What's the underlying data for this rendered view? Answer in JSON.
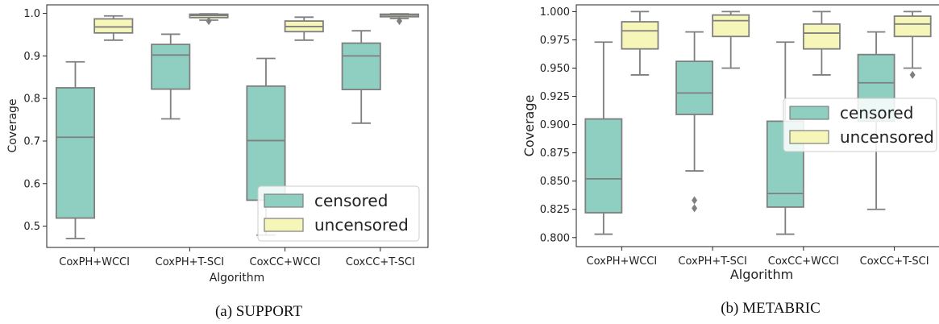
{
  "chart_data": [
    {
      "type": "box",
      "caption": "(a) SUPPORT",
      "xlabel": "Algorithm",
      "ylabel": "Coverage",
      "ylim": [
        0.45,
        1.02
      ],
      "yticks": [
        "0.5",
        "0.6",
        "0.7",
        "0.8",
        "0.9",
        "1.0"
      ],
      "ytick_values": [
        0.5,
        0.6,
        0.7,
        0.8,
        0.9,
        1.0
      ],
      "categories": [
        "CoxPH+WCCI",
        "CoxPH+T-SCI",
        "CoxCC+WCCI",
        "CoxCC+T-SCI"
      ],
      "legend": {
        "position": "lower-right",
        "entries": [
          "censored",
          "uncensored"
        ]
      },
      "series": [
        {
          "name": "censored",
          "color": "#8ecfc1",
          "boxes": [
            {
              "whislo": 0.471,
              "q1": 0.519,
              "med": 0.709,
              "q3": 0.825,
              "whishi": 0.886,
              "fliers": []
            },
            {
              "whislo": 0.752,
              "q1": 0.822,
              "med": 0.902,
              "q3": 0.927,
              "whishi": 0.951,
              "fliers": []
            },
            {
              "whislo": 0.479,
              "q1": 0.561,
              "med": 0.701,
              "q3": 0.829,
              "whishi": 0.894,
              "fliers": []
            },
            {
              "whislo": 0.742,
              "q1": 0.821,
              "med": 0.9,
              "q3": 0.93,
              "whishi": 0.959,
              "fliers": []
            }
          ]
        },
        {
          "name": "uncensored",
          "color": "#f7f6b9",
          "boxes": [
            {
              "whislo": 0.937,
              "q1": 0.954,
              "med": 0.968,
              "q3": 0.987,
              "whishi": 0.994,
              "fliers": []
            },
            {
              "whislo": 0.984,
              "q1": 0.99,
              "med": 0.995,
              "q3": 0.998,
              "whishi": 0.999,
              "fliers": [
                0.982
              ]
            },
            {
              "whislo": 0.937,
              "q1": 0.957,
              "med": 0.969,
              "q3": 0.982,
              "whishi": 0.991,
              "fliers": []
            },
            {
              "whislo": 0.988,
              "q1": 0.992,
              "med": 0.996,
              "q3": 0.998,
              "whishi": 0.999,
              "fliers": [
                0.982
              ]
            }
          ]
        }
      ]
    },
    {
      "type": "box",
      "caption": "(b) METABRIC",
      "xlabel": "Algorithm",
      "ylabel": "Coverage",
      "ylim": [
        0.792,
        1.006
      ],
      "yticks": [
        "0.800",
        "0.825",
        "0.850",
        "0.875",
        "0.900",
        "0.925",
        "0.950",
        "0.975",
        "1.000"
      ],
      "ytick_values": [
        0.8,
        0.825,
        0.85,
        0.875,
        0.9,
        0.925,
        0.95,
        0.975,
        1.0
      ],
      "categories": [
        "CoxPH+WCCI",
        "CoxPH+T-SCI",
        "CoxCC+WCCI",
        "CoxCC+T-SCI"
      ],
      "legend": {
        "position": "center-right",
        "entries": [
          "censored",
          "uncensored"
        ]
      },
      "series": [
        {
          "name": "censored",
          "color": "#8ecfc1",
          "boxes": [
            {
              "whislo": 0.803,
              "q1": 0.822,
              "med": 0.852,
              "q3": 0.905,
              "whishi": 0.973,
              "fliers": []
            },
            {
              "whislo": 0.859,
              "q1": 0.909,
              "med": 0.928,
              "q3": 0.956,
              "whishi": 0.982,
              "fliers": [
                0.833,
                0.826
              ]
            },
            {
              "whislo": 0.803,
              "q1": 0.827,
              "med": 0.839,
              "q3": 0.903,
              "whishi": 0.973,
              "fliers": []
            },
            {
              "whislo": 0.825,
              "q1": 0.903,
              "med": 0.937,
              "q3": 0.962,
              "whishi": 0.982,
              "fliers": []
            }
          ]
        },
        {
          "name": "uncensored",
          "color": "#f7f6b9",
          "boxes": [
            {
              "whislo": 0.944,
              "q1": 0.967,
              "med": 0.983,
              "q3": 0.991,
              "whishi": 1.0,
              "fliers": []
            },
            {
              "whislo": 0.95,
              "q1": 0.978,
              "med": 0.992,
              "q3": 0.997,
              "whishi": 1.0,
              "fliers": []
            },
            {
              "whislo": 0.944,
              "q1": 0.967,
              "med": 0.981,
              "q3": 0.989,
              "whishi": 1.0,
              "fliers": []
            },
            {
              "whislo": 0.95,
              "q1": 0.978,
              "med": 0.989,
              "q3": 0.996,
              "whishi": 1.0,
              "fliers": [
                0.944
              ]
            }
          ]
        }
      ]
    }
  ]
}
